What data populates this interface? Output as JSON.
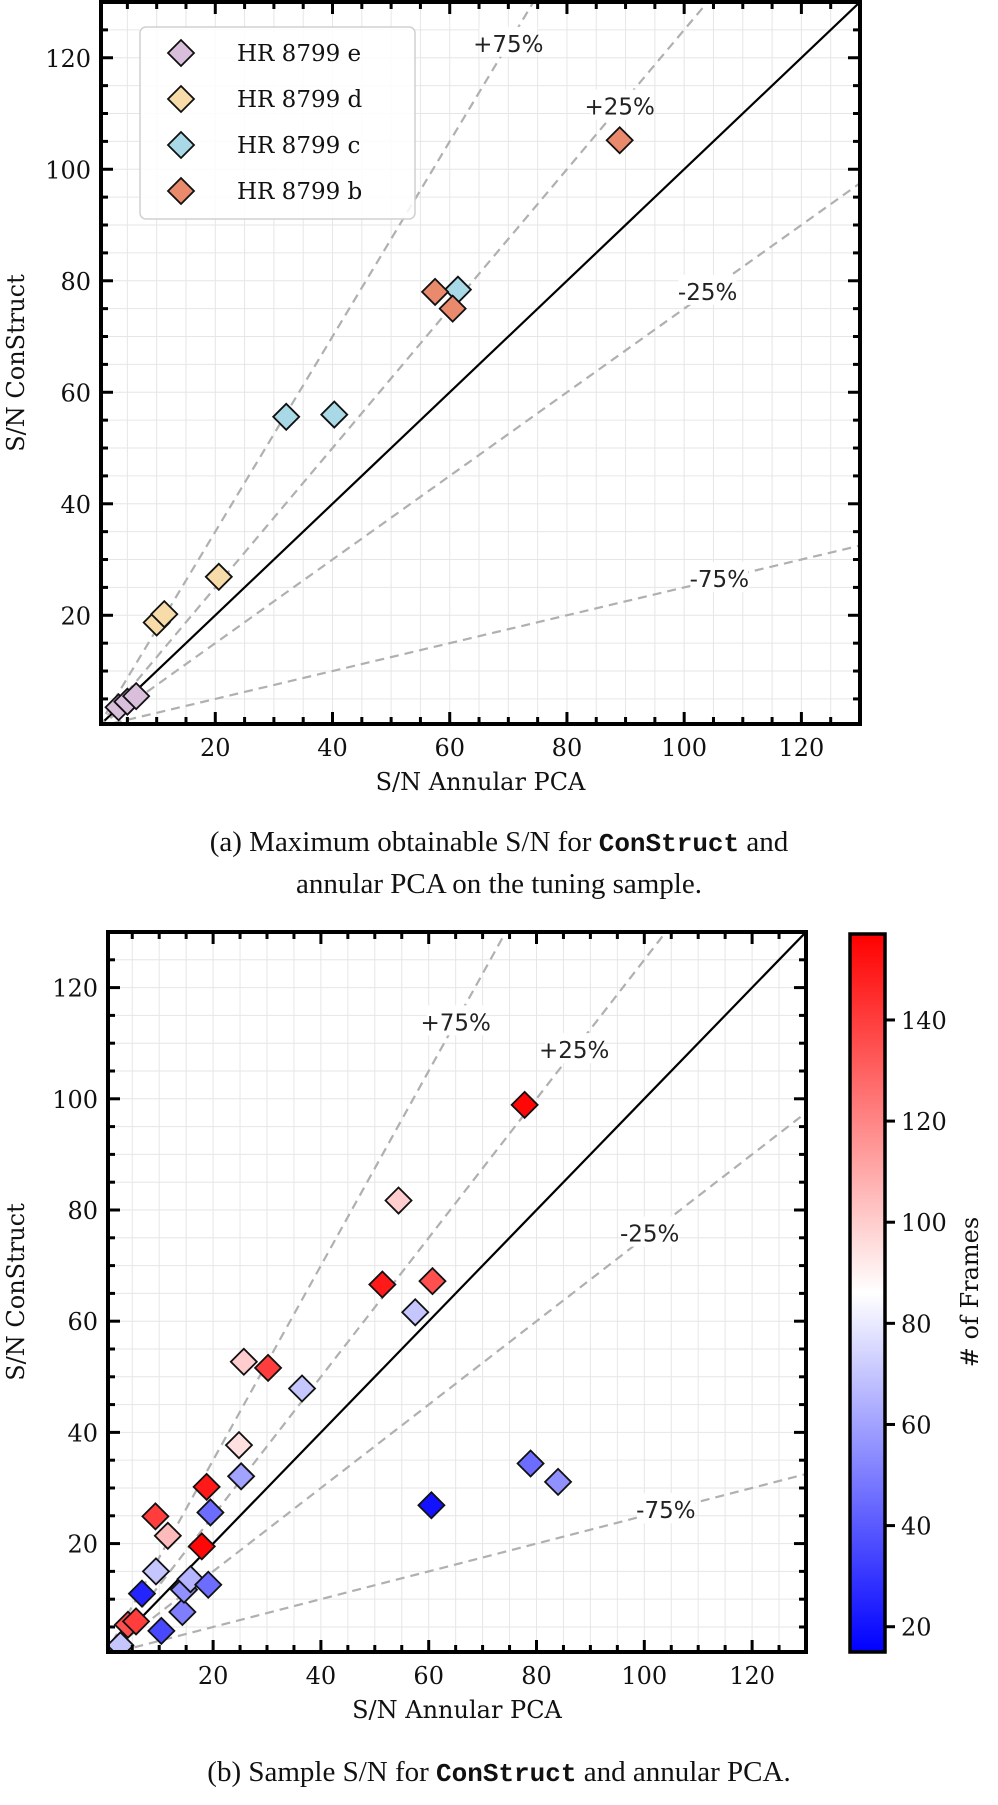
{
  "captions": {
    "a": {
      "line1_pre": "(a) Maximum obtainable S/N for ",
      "line1_code": "ConStruct",
      "line1_post": " and",
      "line2": "annular PCA on the tuning sample."
    },
    "b": {
      "pre": "(b) Sample S/N for ",
      "code": "ConStruct",
      "post": " and annular PCA."
    }
  },
  "chart_data": [
    {
      "type": "scatter",
      "marker": "diamond",
      "xlabel": "S/N Annular PCA",
      "ylabel": "S/N ConStruct",
      "xlim": [
        0.5,
        130
      ],
      "ylim": [
        0.5,
        130
      ],
      "xticks": [
        20,
        40,
        60,
        80,
        100,
        120
      ],
      "yticks": [
        20,
        40,
        60,
        80,
        100,
        120
      ],
      "grid": true,
      "legend_placement": "top-left",
      "reference_lines": [
        {
          "label": "",
          "slope": 1.0,
          "style": "solid",
          "color": "#000000"
        },
        {
          "label": "+75%",
          "slope": 1.75,
          "style": "dashed",
          "color": "#b0b0b0"
        },
        {
          "label": "+25%",
          "slope": 1.25,
          "style": "dashed",
          "color": "#b0b0b0"
        },
        {
          "label": "-25%",
          "slope": 0.75,
          "style": "dashed",
          "color": "#b0b0b0"
        },
        {
          "label": "-75%",
          "slope": 0.25,
          "style": "dashed",
          "color": "#b0b0b0"
        }
      ],
      "series": [
        {
          "name": "HR 8799 e",
          "color": "#d9bfdc",
          "points": [
            [
              3.5,
              3.5
            ],
            [
              5.0,
              4.5
            ],
            [
              6.5,
              5.5
            ]
          ]
        },
        {
          "name": "HR 8799 d",
          "color": "#f7dba8",
          "points": [
            [
              10.0,
              18.7
            ],
            [
              11.3,
              20.2
            ],
            [
              20.6,
              26.9
            ]
          ]
        },
        {
          "name": "HR 8799 c",
          "color": "#a9d9e6",
          "points": [
            [
              32.1,
              55.6
            ],
            [
              40.3,
              56.0
            ],
            [
              61.4,
              78.4
            ]
          ]
        },
        {
          "name": "HR 8799 b",
          "color": "#e98a6d",
          "points": [
            [
              57.5,
              78.0
            ],
            [
              60.5,
              75.0
            ],
            [
              89.0,
              105.2
            ]
          ]
        }
      ]
    },
    {
      "type": "scatter",
      "marker": "diamond",
      "xlabel": "S/N Annular PCA",
      "ylabel": "S/N ConStruct",
      "xlim": [
        0.5,
        130
      ],
      "ylim": [
        0.5,
        130
      ],
      "xticks": [
        20,
        40,
        60,
        80,
        100,
        120
      ],
      "yticks": [
        20,
        40,
        60,
        80,
        100,
        120
      ],
      "grid": true,
      "reference_lines": [
        {
          "label": "",
          "slope": 1.0,
          "style": "solid",
          "color": "#000000"
        },
        {
          "label": "+75%",
          "slope": 1.75,
          "style": "dashed",
          "color": "#b0b0b0"
        },
        {
          "label": "+25%",
          "slope": 1.25,
          "style": "dashed",
          "color": "#b0b0b0"
        },
        {
          "label": "-25%",
          "slope": 0.75,
          "style": "dashed",
          "color": "#b0b0b0"
        },
        {
          "label": "-75%",
          "slope": 0.25,
          "style": "dashed",
          "color": "#b0b0b0"
        }
      ],
      "colorbar": {
        "label": "# of Frames",
        "colormap": "bwr",
        "range": [
          15,
          157
        ],
        "ticks": [
          20,
          40,
          60,
          80,
          100,
          120,
          140
        ]
      },
      "points": [
        {
          "x": 2.8,
          "y": 1.7,
          "frames": 70
        },
        {
          "x": 4.2,
          "y": 5.4,
          "frames": 135
        },
        {
          "x": 5.7,
          "y": 6.0,
          "frames": 140
        },
        {
          "x": 6.8,
          "y": 11.0,
          "frames": 25
        },
        {
          "x": 9.3,
          "y": 24.9,
          "frames": 140
        },
        {
          "x": 9.4,
          "y": 15.0,
          "frames": 70
        },
        {
          "x": 10.4,
          "y": 4.3,
          "frames": 35
        },
        {
          "x": 11.6,
          "y": 21.4,
          "frames": 105
        },
        {
          "x": 14.3,
          "y": 7.7,
          "frames": 50
        },
        {
          "x": 14.6,
          "y": 11.7,
          "frames": 55
        },
        {
          "x": 15.8,
          "y": 13.6,
          "frames": 65
        },
        {
          "x": 17.9,
          "y": 19.5,
          "frames": 155
        },
        {
          "x": 18.8,
          "y": 30.2,
          "frames": 150
        },
        {
          "x": 19.1,
          "y": 12.6,
          "frames": 45
        },
        {
          "x": 19.5,
          "y": 25.6,
          "frames": 45
        },
        {
          "x": 24.8,
          "y": 37.7,
          "frames": 95
        },
        {
          "x": 25.2,
          "y": 32.1,
          "frames": 60
        },
        {
          "x": 25.7,
          "y": 52.7,
          "frames": 100
        },
        {
          "x": 30.2,
          "y": 51.6,
          "frames": 140
        },
        {
          "x": 36.5,
          "y": 47.9,
          "frames": 70
        },
        {
          "x": 51.4,
          "y": 66.6,
          "frames": 150
        },
        {
          "x": 54.4,
          "y": 81.7,
          "frames": 100
        },
        {
          "x": 57.5,
          "y": 61.6,
          "frames": 70
        },
        {
          "x": 60.5,
          "y": 26.9,
          "frames": 20
        },
        {
          "x": 60.7,
          "y": 67.2,
          "frames": 135
        },
        {
          "x": 77.8,
          "y": 98.9,
          "frames": 155
        },
        {
          "x": 78.9,
          "y": 34.4,
          "frames": 45
        },
        {
          "x": 84.0,
          "y": 31.1,
          "frames": 55
        }
      ]
    }
  ]
}
